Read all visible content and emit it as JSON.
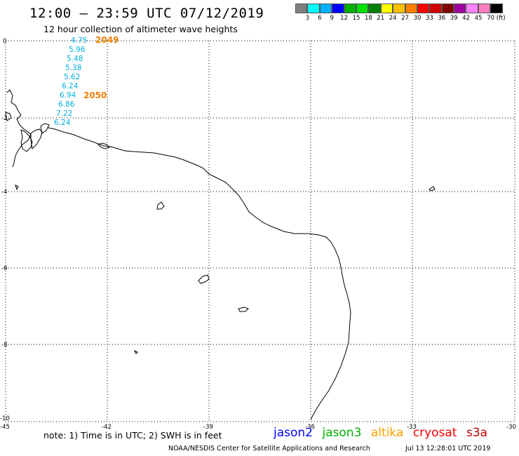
{
  "header": {
    "title": "12:00 – 23:59 UTC 07/12/2019",
    "subtitle": "12 hour collection of altimeter wave heights"
  },
  "legend": {
    "unit_label": "70 (ft)",
    "colors": [
      "#808080",
      "#00ffff",
      "#00b0ff",
      "#0000ff",
      "#00b000",
      "#00e000",
      "#008000",
      "#ffff00",
      "#ffc000",
      "#ff8000",
      "#ff0000",
      "#d00000",
      "#800000",
      "#a000a0",
      "#ff80ff",
      "#ff80c0",
      "#000000"
    ],
    "labels": [
      "3",
      "6",
      "9",
      "12",
      "15",
      "18",
      "21",
      "24",
      "27",
      "30",
      "33",
      "36",
      "39",
      "42",
      "45",
      "70 (ft)"
    ]
  },
  "map": {
    "y_tick_labels": [
      "0",
      "-2",
      "-4",
      "-6",
      "-8",
      "-10"
    ],
    "x_tick_labels": [
      "-45",
      "-42",
      "-39",
      "-36",
      "-33",
      "-30"
    ]
  },
  "observations": {
    "times": [
      {
        "text": "2049",
        "color": "#f08000"
      },
      {
        "text": "2050",
        "color": "#f08000"
      }
    ],
    "wave_heights": [
      "4.75",
      "5.96",
      "5.48",
      "5.38",
      "5.62",
      "6.24",
      "6.94",
      "6.86",
      "7.22",
      "6.24"
    ],
    "wave_color": "#00b0e0"
  },
  "footer": {
    "note": "note: 1) Time is in UTC; 2) SWH is in feet",
    "satellites": [
      {
        "name": "jason2",
        "color": "#0000ff"
      },
      {
        "name": "jason3",
        "color": "#00b000"
      },
      {
        "name": "altika",
        "color": "#ffa000"
      },
      {
        "name": "cryosat",
        "color": "#ff0000"
      },
      {
        "name": "s3a",
        "color": "#c00000"
      }
    ],
    "credit": "NOAA/NESDIS Center for Satellite Applications and Research",
    "generated": "Jul 13 12:28:01 UTC 2019"
  }
}
